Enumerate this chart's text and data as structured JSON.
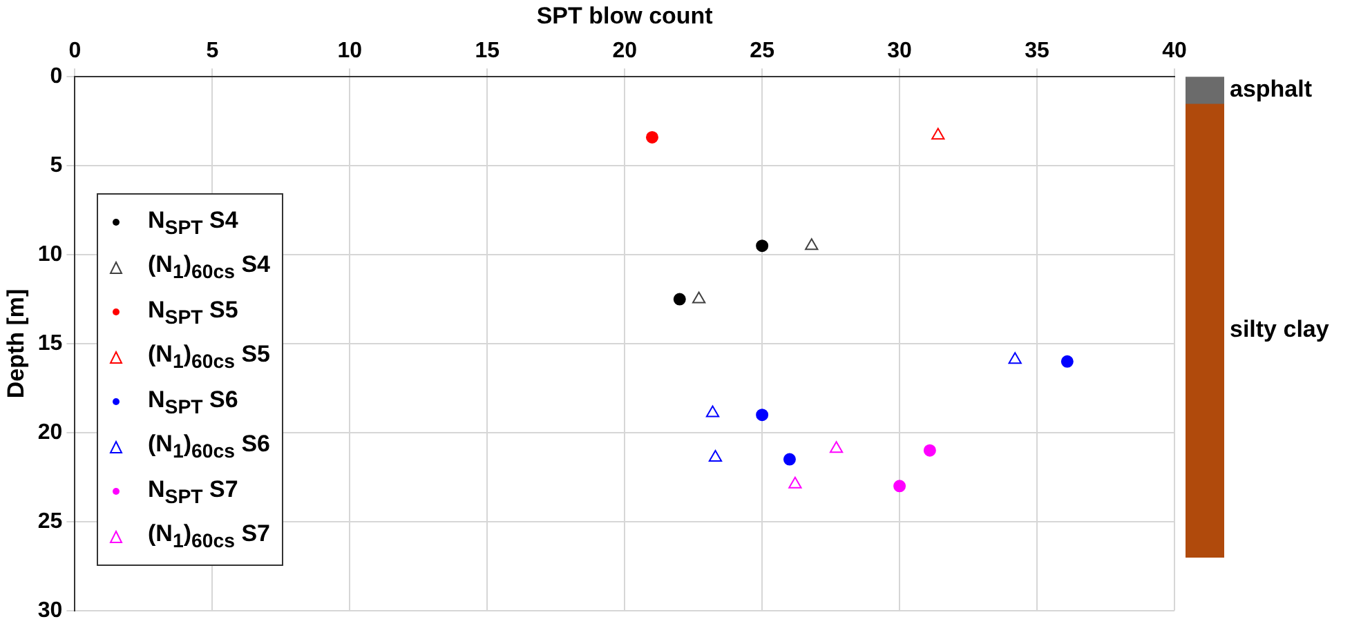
{
  "chart_data": [
    {
      "type": "scatter",
      "xlabel": "SPT blow count",
      "ylabel": "Depth [m]",
      "xlim": [
        0,
        40
      ],
      "xticks": [
        0,
        5,
        10,
        15,
        20,
        25,
        30,
        35,
        40
      ],
      "ylim": [
        30,
        0
      ],
      "yticks": [
        0,
        5,
        10,
        15,
        20,
        25,
        30
      ],
      "grid": true,
      "legend": "left",
      "series": [
        {
          "name": "N$_{SPT}$ S4",
          "color": "#000000",
          "marker": "circle",
          "x": [
            25,
            22
          ],
          "values": [
            9.5,
            12.5
          ]
        },
        {
          "name": "(N$_{1}$)$_{60cs}$ S4",
          "color": "#404040",
          "marker": "triangle",
          "x": [
            26.8,
            22.7
          ],
          "values": [
            9.5,
            12.5
          ]
        },
        {
          "name": "N$_{SPT}$ S5",
          "color": "#ff0000",
          "marker": "circle",
          "x": [
            21
          ],
          "values": [
            3.4
          ]
        },
        {
          "name": "(N$_{1}$)$_{60cs}$ S5",
          "color": "#ff0000",
          "marker": "triangle",
          "x": [
            31.4
          ],
          "values": [
            3.3
          ]
        },
        {
          "name": "N$_{SPT}$ S6",
          "color": "#0000ff",
          "marker": "circle",
          "x": [
            36.1,
            25,
            26
          ],
          "values": [
            16,
            19,
            21.5
          ]
        },
        {
          "name": "(N$_{1}$)$_{60cs}$ S6",
          "color": "#0000ff",
          "marker": "triangle",
          "x": [
            34.2,
            23.2,
            23.3
          ],
          "values": [
            15.9,
            18.9,
            21.4
          ]
        },
        {
          "name": "N$_{SPT}$ S7",
          "color": "#ff00ff",
          "marker": "circle",
          "x": [
            31.1,
            30
          ],
          "values": [
            21,
            23
          ]
        },
        {
          "name": "(N$_{1}$)$_{60cs}$ S7",
          "color": "#ff00ff",
          "marker": "triangle",
          "x": [
            27.7,
            26.2
          ],
          "values": [
            20.9,
            22.9
          ]
        }
      ]
    },
    {
      "type": "bar",
      "stacked": true,
      "categories": [
        null
      ],
      "ylim": [
        30,
        0
      ],
      "tick_labels": false,
      "series": [
        {
          "name": "asphalt",
          "color": "#6b6b6b",
          "values": [
            1.5
          ]
        },
        {
          "name": "silty clay",
          "color": "#b04a0c",
          "values": [
            25.5
          ]
        }
      ]
    }
  ]
}
